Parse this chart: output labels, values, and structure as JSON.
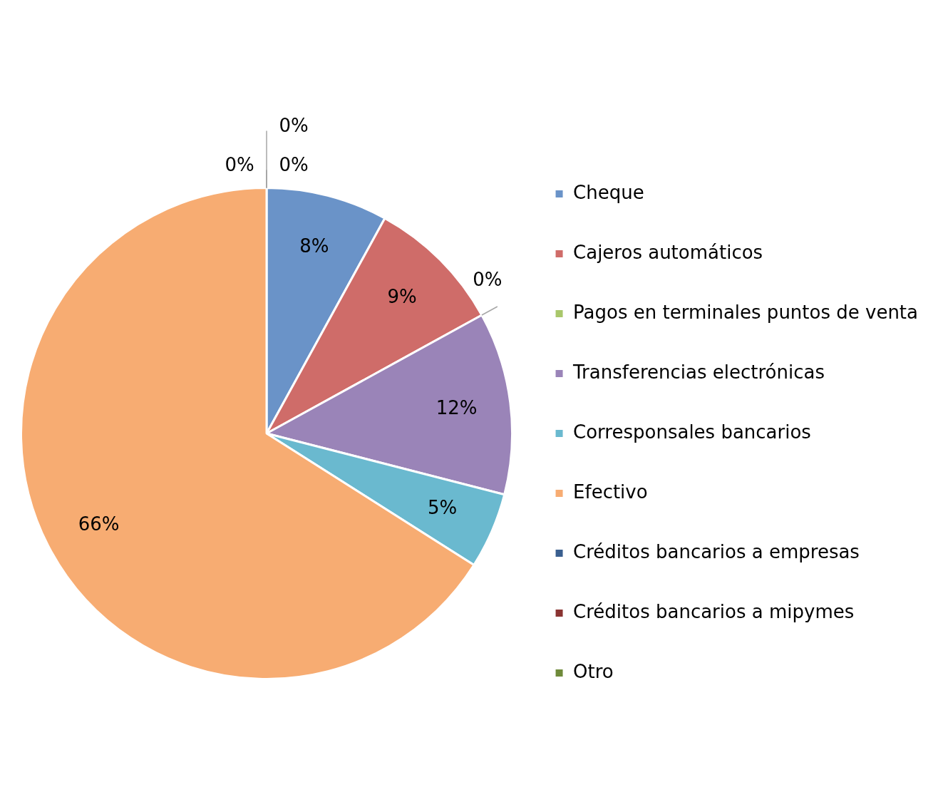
{
  "chart_data": {
    "type": "pie",
    "categories": [
      "Cheque",
      "Cajeros automáticos",
      "Pagos en terminales puntos de venta",
      "Transferencias electrónicas",
      "Corresponsales bancarios",
      "Efectivo",
      "Créditos bancarios a empresas",
      "Créditos bancarios a mipymes",
      "Otro"
    ],
    "values": [
      8,
      9,
      0,
      12,
      5,
      66,
      0,
      0,
      0
    ],
    "value_labels": [
      "8%",
      "9%",
      "0%",
      "12%",
      "5%",
      "66%",
      "0%",
      "0%",
      "0%"
    ],
    "colors": [
      "#6a93c8",
      "#cf6c69",
      "#a9c76b",
      "#9a84b8",
      "#6ab9cf",
      "#f7ac72",
      "#3a5f8f",
      "#8a3432",
      "#6f8a3a"
    ],
    "legend": "right"
  }
}
